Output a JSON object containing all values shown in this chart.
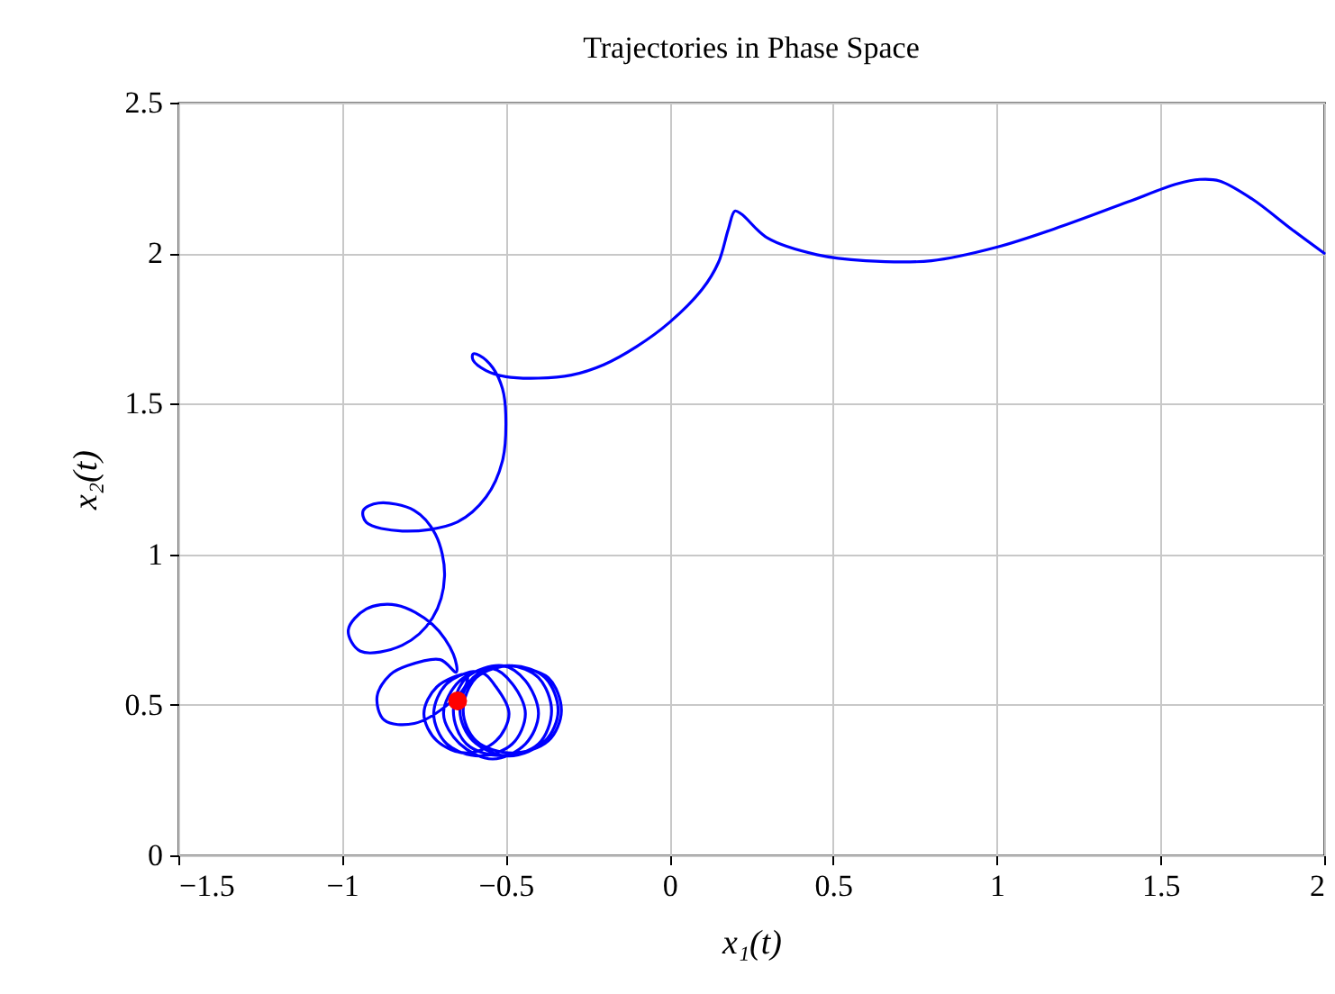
{
  "chart_data": {
    "type": "line",
    "title": "Trajectories in Phase Space",
    "xlabel": "x₁(t)",
    "ylabel": "x₂(t)",
    "xlim": [
      -1.5,
      2
    ],
    "xticks": [
      -1.5,
      -1,
      -0.5,
      0,
      0.5,
      1,
      1.5,
      2
    ],
    "ylim": [
      0,
      2.5
    ],
    "yticks": [
      0,
      0.5,
      1,
      1.5,
      2,
      2.5
    ],
    "grid": true,
    "series": [
      {
        "color": "#0000ff",
        "marker": "none",
        "line_style": "solid",
        "x": [
          2,
          1.9,
          1.78,
          1.68,
          1.62,
          1.55,
          1.4,
          1.2,
          1.0,
          0.8,
          0.6,
          0.45,
          0.3,
          0.22,
          0.2,
          0.18,
          0.15,
          0.1,
          0.0,
          -0.1,
          -0.2,
          -0.3,
          -0.4,
          -0.5,
          -0.56,
          -0.6,
          -0.6,
          -0.58,
          -0.54,
          -0.51,
          -0.5,
          -0.51,
          -0.56,
          -0.65,
          -0.816,
          -0.926,
          -0.935,
          -0.889,
          -0.78,
          -0.715,
          -0.687,
          -0.724,
          -0.816,
          -0.944,
          -0.981,
          -0.926,
          -0.834,
          -0.724,
          -0.66,
          -0.651,
          -0.7,
          -0.8,
          -0.853,
          -0.893,
          -0.871,
          -0.779,
          -0.669,
          -0.62,
          -0.62,
          -0.71,
          -0.75,
          -0.71,
          -0.62,
          -0.53,
          -0.49,
          -0.53,
          -0.58,
          -0.68,
          -0.72,
          -0.68,
          -0.58,
          -0.48,
          -0.44,
          -0.48,
          -0.54,
          -0.64,
          -0.69,
          -0.64,
          -0.54,
          -0.44,
          -0.4,
          -0.44,
          -0.51,
          -0.62,
          -0.66,
          -0.62,
          -0.51,
          -0.4,
          -0.36,
          -0.4,
          -0.49,
          -0.6,
          -0.64,
          -0.6,
          -0.49,
          -0.38,
          -0.34,
          -0.38,
          -0.48,
          -0.59,
          -0.63,
          -0.59,
          -0.48,
          -0.37,
          -0.33,
          -0.37,
          -0.48
        ],
        "values": [
          2.0,
          2.08,
          2.18,
          2.24,
          2.245,
          2.23,
          2.17,
          2.09,
          2.02,
          1.975,
          1.975,
          1.995,
          2.05,
          2.13,
          2.14,
          2.08,
          1.97,
          1.88,
          1.77,
          1.69,
          1.63,
          1.595,
          1.585,
          1.59,
          1.61,
          1.645,
          1.665,
          1.66,
          1.62,
          1.55,
          1.465,
          1.31,
          1.19,
          1.106,
          1.077,
          1.106,
          1.146,
          1.17,
          1.146,
          1.067,
          0.927,
          0.788,
          0.698,
          0.678,
          0.748,
          0.818,
          0.831,
          0.767,
          0.668,
          0.608,
          0.65,
          0.63,
          0.6,
          0.528,
          0.449,
          0.438,
          0.508,
          0.57,
          0.6,
          0.56,
          0.47,
          0.38,
          0.34,
          0.38,
          0.47,
          0.56,
          0.61,
          0.57,
          0.47,
          0.37,
          0.33,
          0.37,
          0.47,
          0.57,
          0.62,
          0.58,
          0.47,
          0.37,
          0.32,
          0.37,
          0.47,
          0.58,
          0.63,
          0.59,
          0.48,
          0.37,
          0.33,
          0.37,
          0.48,
          0.59,
          0.63,
          0.59,
          0.48,
          0.38,
          0.33,
          0.38,
          0.48,
          0.59,
          0.63,
          0.59,
          0.48,
          0.38,
          0.34,
          0.38,
          0.48,
          0.59,
          0.63
        ]
      },
      {
        "type": "scatter",
        "color": "#ff0000",
        "marker": "circle",
        "x": [
          -0.647
        ],
        "values": [
          0.513
        ]
      }
    ]
  }
}
